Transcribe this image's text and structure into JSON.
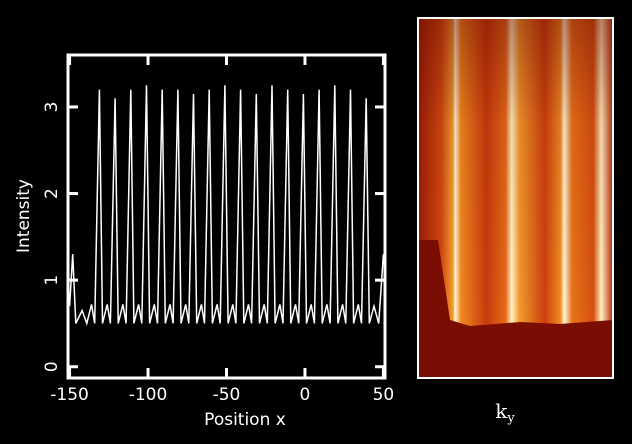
{
  "chart_data": {
    "type": "line",
    "xlabel": "Position x",
    "ylabel": "Intensity",
    "xlim": [
      -151,
      51
    ],
    "ylim": [
      -0.13,
      3.6
    ],
    "xticks": [
      -150,
      -100,
      -50,
      0,
      50
    ],
    "yticks": [
      0,
      1,
      2,
      3
    ],
    "x": [
      -150,
      -148,
      -146,
      -142,
      -139,
      -136,
      -134,
      -131,
      -129,
      -126,
      -124,
      -121,
      -119,
      -116,
      -114,
      -111,
      -109,
      -106,
      -104,
      -101,
      -99,
      -96,
      -94,
      -91,
      -89,
      -86,
      -84,
      -81,
      -79,
      -76,
      -74,
      -71,
      -69,
      -66,
      -64,
      -61,
      -59,
      -56,
      -54,
      -51,
      -49,
      -46,
      -44,
      -41,
      -39,
      -36,
      -34,
      -31,
      -29,
      -26,
      -24,
      -21,
      -19,
      -16,
      -14,
      -11,
      -9,
      -6,
      -4,
      -1,
      1,
      4,
      6,
      9,
      11,
      14,
      16,
      19,
      21,
      24,
      26,
      29,
      31,
      34,
      36,
      39,
      41,
      44,
      47,
      50
    ],
    "series": [
      {
        "color": "#ffffff",
        "values": [
          0.7,
          1.3,
          0.5,
          0.65,
          0.5,
          0.72,
          0.5,
          3.2,
          0.5,
          0.72,
          0.5,
          3.1,
          0.5,
          0.72,
          0.5,
          3.2,
          0.5,
          0.72,
          0.5,
          3.25,
          0.5,
          0.72,
          0.5,
          3.2,
          0.5,
          0.72,
          0.5,
          3.2,
          0.5,
          0.72,
          0.5,
          3.15,
          0.5,
          0.72,
          0.5,
          3.2,
          0.5,
          0.72,
          0.5,
          3.25,
          0.5,
          0.72,
          0.5,
          3.2,
          0.5,
          0.72,
          0.5,
          3.15,
          0.5,
          0.72,
          0.5,
          3.25,
          0.5,
          0.72,
          0.5,
          3.2,
          0.5,
          0.72,
          0.5,
          3.15,
          0.5,
          0.72,
          0.5,
          3.2,
          0.5,
          0.72,
          0.5,
          3.25,
          0.5,
          0.72,
          0.5,
          3.2,
          0.5,
          0.72,
          0.5,
          3.1,
          0.5,
          0.7,
          0.5,
          1.3
        ]
      }
    ],
    "right_panel": {
      "xlabel": "k",
      "xlabel_subscript": "y"
    }
  }
}
